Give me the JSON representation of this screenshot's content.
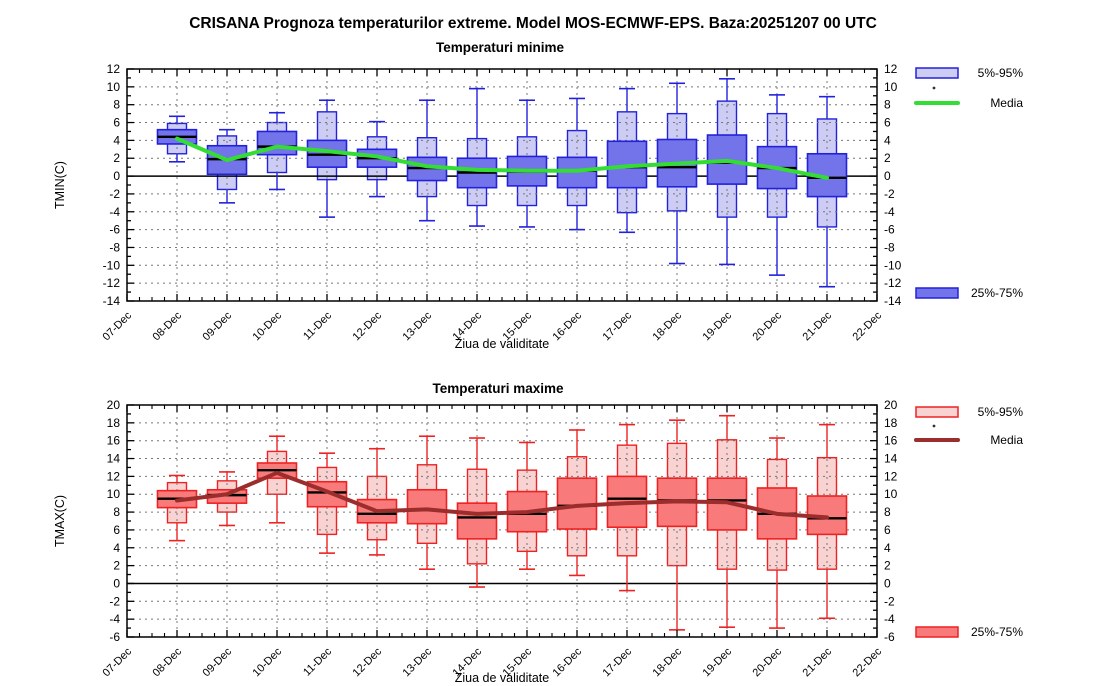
{
  "title": "CRISANA  Prognoza temperaturilor extreme.  Model MOS-ECMWF-EPS. Baza:20251207 00 UTC",
  "chart_data": [
    {
      "type": "boxplot",
      "subtitle": "Temperaturi minime",
      "subtitle_color": "#2222dd",
      "ylabel": "TMIN(C)",
      "xlabel": "Ziua de validitate",
      "ylim": [
        -14,
        12
      ],
      "ytick_step": 2,
      "grid": "dashed",
      "legend_position": "right",
      "legend": [
        {
          "label": "5%-95%",
          "swatch": "light-box"
        },
        {
          "label": "Media",
          "swatch": "line"
        },
        {
          "label": "25%-75%",
          "swatch": "dark-box"
        }
      ],
      "colors": {
        "light_fill": "#ccccf5",
        "box_fill": "#7373ea",
        "border": "#2222dd",
        "median": "#000000",
        "media_line": "#33dd33"
      },
      "x_labels": [
        "07-Dec",
        "08-Dec",
        "09-Dec",
        "10-Dec",
        "11-Dec",
        "12-Dec",
        "13-Dec",
        "14-Dec",
        "15-Dec",
        "16-Dec",
        "17-Dec",
        "18-Dec",
        "19-Dec",
        "20-Dec",
        "21-Dec",
        "22-Dec"
      ],
      "days": [
        "08-Dec",
        "09-Dec",
        "10-Dec",
        "11-Dec",
        "12-Dec",
        "13-Dec",
        "14-Dec",
        "15-Dec",
        "16-Dec",
        "17-Dec",
        "18-Dec",
        "19-Dec",
        "20-Dec",
        "21-Dec"
      ],
      "series": {
        "whisker_low": [
          1.6,
          -3.0,
          -1.5,
          -4.6,
          -2.3,
          -5.0,
          -5.6,
          -5.7,
          -6.0,
          -6.3,
          -9.8,
          -9.9,
          -11.1,
          -12.4
        ],
        "p5": [
          2.5,
          -1.5,
          0.4,
          -0.4,
          -0.4,
          -2.3,
          -3.3,
          -3.3,
          -3.3,
          -4.1,
          -3.9,
          -4.6,
          -4.6,
          -5.7
        ],
        "p25": [
          3.6,
          0.2,
          2.4,
          1.0,
          1.0,
          -0.5,
          -1.3,
          -1.1,
          -1.3,
          -1.3,
          -1.2,
          -0.9,
          -1.4,
          -2.3
        ],
        "median": [
          4.4,
          1.9,
          3.3,
          2.4,
          2.0,
          0.9,
          0.4,
          0.5,
          0.6,
          1.0,
          1.0,
          1.5,
          0.9,
          -0.2
        ],
        "p75": [
          5.2,
          3.4,
          5.0,
          4.0,
          3.0,
          2.1,
          2.0,
          2.2,
          2.1,
          3.9,
          4.1,
          4.6,
          3.3,
          2.5
        ],
        "p95": [
          5.9,
          4.5,
          6.0,
          7.2,
          4.4,
          4.3,
          4.2,
          4.4,
          5.1,
          7.2,
          7.0,
          8.4,
          7.0,
          6.4
        ],
        "whisker_high": [
          6.7,
          5.2,
          7.1,
          8.5,
          6.1,
          8.5,
          9.8,
          8.5,
          8.7,
          9.8,
          10.4,
          10.9,
          9.1,
          8.9
        ],
        "media": [
          4.2,
          1.8,
          3.3,
          2.8,
          2.2,
          1.1,
          0.7,
          0.6,
          0.6,
          1.1,
          1.4,
          1.7,
          0.9,
          -0.2
        ]
      }
    },
    {
      "type": "boxplot",
      "subtitle": "Temperaturi maxime",
      "subtitle_color": "#ee1111",
      "ylabel": "TMAX(C)",
      "xlabel": "Ziua de validitate",
      "ylim": [
        -6,
        20
      ],
      "ytick_step": 2,
      "grid": "dashed",
      "legend_position": "right",
      "legend": [
        {
          "label": "5%-95%",
          "swatch": "light-box"
        },
        {
          "label": "Media",
          "swatch": "line"
        },
        {
          "label": "25%-75%",
          "swatch": "dark-box"
        }
      ],
      "colors": {
        "light_fill": "#f9d2d2",
        "box_fill": "#f97a7a",
        "border": "#ee2222",
        "median": "#000000",
        "media_line": "#9b2d2d"
      },
      "x_labels": [
        "07-Dec",
        "08-Dec",
        "09-Dec",
        "10-Dec",
        "11-Dec",
        "12-Dec",
        "13-Dec",
        "14-Dec",
        "15-Dec",
        "16-Dec",
        "17-Dec",
        "18-Dec",
        "19-Dec",
        "20-Dec",
        "21-Dec",
        "22-Dec"
      ],
      "days": [
        "08-Dec",
        "09-Dec",
        "10-Dec",
        "11-Dec",
        "12-Dec",
        "13-Dec",
        "14-Dec",
        "15-Dec",
        "16-Dec",
        "17-Dec",
        "18-Dec",
        "19-Dec",
        "20-Dec",
        "21-Dec"
      ],
      "series": {
        "whisker_low": [
          4.8,
          6.5,
          6.8,
          3.4,
          3.2,
          1.6,
          -0.4,
          1.6,
          0.9,
          -0.8,
          -5.2,
          -4.9,
          -5.0,
          -3.9
        ],
        "p5": [
          6.8,
          8.0,
          10.0,
          5.5,
          4.9,
          4.5,
          2.2,
          3.6,
          3.1,
          3.1,
          2.0,
          1.6,
          1.5,
          1.6
        ],
        "p25": [
          8.5,
          9.0,
          11.8,
          8.6,
          6.8,
          6.7,
          5.0,
          5.8,
          6.1,
          6.3,
          6.4,
          6.0,
          5.0,
          5.5
        ],
        "median": [
          9.5,
          9.9,
          12.7,
          10.2,
          7.8,
          8.2,
          7.4,
          7.8,
          8.7,
          9.5,
          9.3,
          9.3,
          7.8,
          7.3
        ],
        "p75": [
          10.4,
          10.5,
          13.5,
          11.4,
          9.4,
          10.5,
          9.0,
          10.3,
          11.8,
          12.0,
          11.8,
          11.8,
          10.7,
          9.8
        ],
        "p95": [
          11.3,
          11.5,
          14.8,
          13.0,
          12.0,
          13.3,
          12.8,
          12.7,
          14.2,
          15.5,
          15.7,
          16.1,
          13.9,
          14.1
        ],
        "whisker_high": [
          12.1,
          12.5,
          16.5,
          14.6,
          15.1,
          16.5,
          16.3,
          15.8,
          17.2,
          17.8,
          18.3,
          18.8,
          16.3,
          17.8
        ],
        "media": [
          9.3,
          10.0,
          12.4,
          10.3,
          8.1,
          8.3,
          7.8,
          8.0,
          8.7,
          9.0,
          9.2,
          9.1,
          7.8,
          7.4
        ]
      }
    }
  ]
}
